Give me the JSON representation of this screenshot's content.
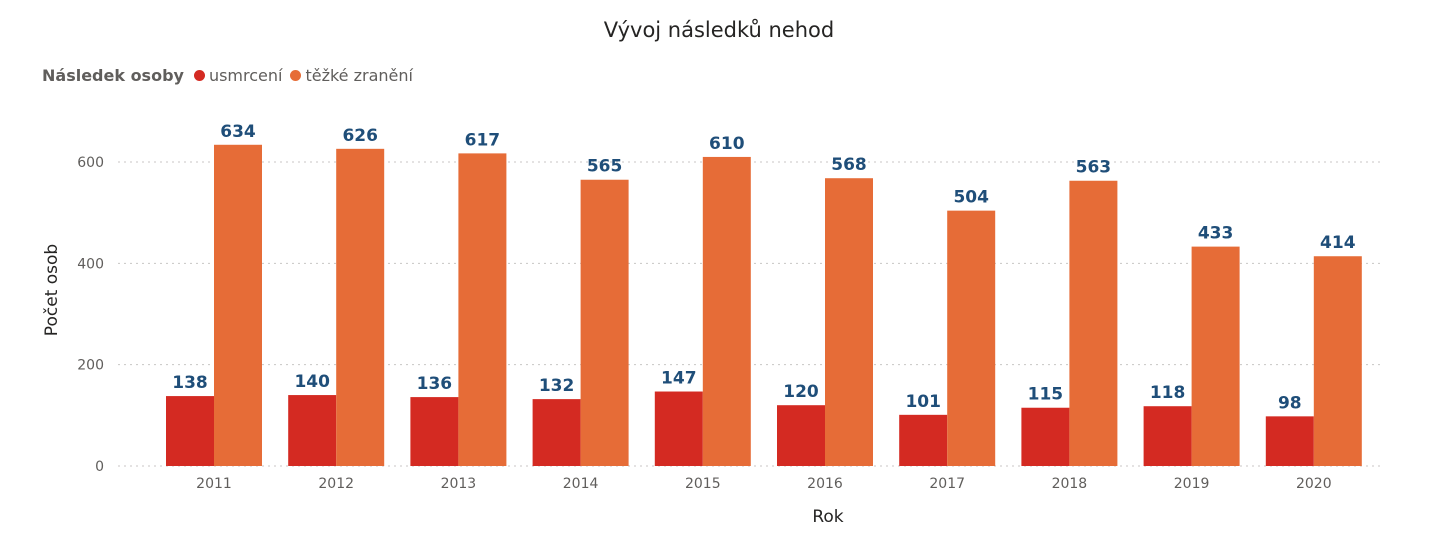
{
  "chart_data": {
    "type": "bar",
    "title": "Vývoj následků nehod",
    "xlabel": "Rok",
    "ylabel": "Počet osob",
    "legend_title": "Následek osoby",
    "legend_position": "top-left",
    "grid": true,
    "ylim": [
      0,
      680
    ],
    "yticks": [
      0,
      200,
      400,
      600
    ],
    "categories": [
      "2011",
      "2012",
      "2013",
      "2014",
      "2015",
      "2016",
      "2017",
      "2018",
      "2019",
      "2020"
    ],
    "series": [
      {
        "name": "usmrcení",
        "color": "#d42a22",
        "values": [
          138,
          140,
          136,
          132,
          147,
          120,
          101,
          115,
          118,
          98
        ]
      },
      {
        "name": "těžké zranění",
        "color": "#e66c37",
        "values": [
          634,
          626,
          617,
          565,
          610,
          568,
          504,
          563,
          433,
          414
        ]
      }
    ],
    "data_label_color": "#1f4e79"
  }
}
